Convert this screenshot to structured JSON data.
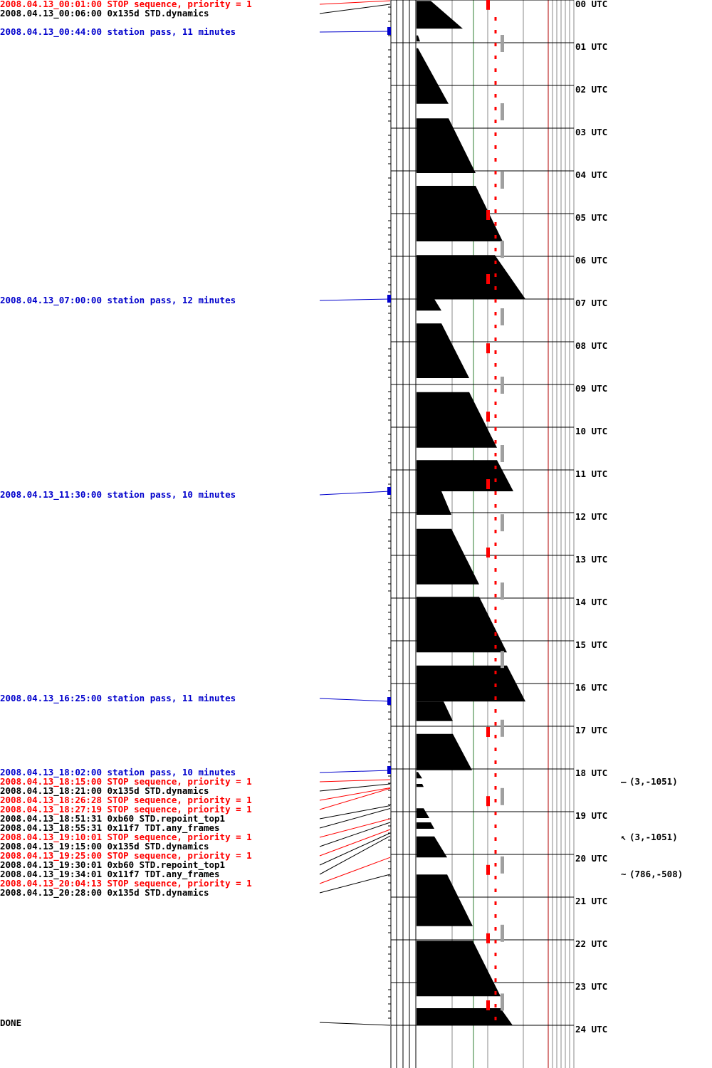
{
  "colors": {
    "stop": "#ff0000",
    "command": "#000000",
    "pass": "#0000cc",
    "bar": "#000000",
    "red_dash": "#ff0000",
    "gray_dash": "#a0a0a0",
    "green_grid": "#2e7d32"
  },
  "events": [
    {
      "text": "2008.04.13_00:01:00 STOP sequence, priority = 1",
      "kind": "stop",
      "t": 0.017
    },
    {
      "text": "2008.04.13_00:06:00 0x135d STD.dynamics",
      "kind": "command",
      "t": 0.1
    },
    {
      "text": "2008.04.13_00:44:00 station pass, 11 minutes",
      "kind": "pass",
      "t": 0.733,
      "duration": 11
    },
    {
      "text": "2008.04.13_07:00:00 station pass, 12 minutes",
      "kind": "pass",
      "t": 7.0,
      "duration": 12
    },
    {
      "text": "2008.04.13_11:30:00 station pass, 10 minutes",
      "kind": "pass",
      "t": 11.5,
      "duration": 10
    },
    {
      "text": "2008.04.13_16:25:00 station pass, 11 minutes",
      "kind": "pass",
      "t": 16.417,
      "duration": 11
    },
    {
      "text": "2008.04.13_18:02:00 station pass, 10 minutes",
      "kind": "pass",
      "t": 18.033,
      "duration": 10
    },
    {
      "text": "2008.04.13_18:15:00 STOP sequence, priority = 1",
      "kind": "stop",
      "t": 18.25
    },
    {
      "text": "2008.04.13_18:21:00 0x135d STD.dynamics",
      "kind": "command",
      "t": 18.35
    },
    {
      "text": "2008.04.13_18:26:28 STOP sequence, priority = 1",
      "kind": "stop",
      "t": 18.441
    },
    {
      "text": "2008.04.13_18:27:19 STOP sequence, priority = 1",
      "kind": "stop",
      "t": 18.455
    },
    {
      "text": "2008.04.13_18:51:31  0xb60 STD.repoint_top1",
      "kind": "command",
      "t": 18.859
    },
    {
      "text": "2008.04.13_18:55:31 0x11f7 TDT.any_frames",
      "kind": "command",
      "t": 18.925
    },
    {
      "text": "2008.04.13_19:10:01 STOP sequence, priority = 1",
      "kind": "stop",
      "t": 19.167
    },
    {
      "text": "2008.04.13_19:15:00 0x135d STD.dynamics",
      "kind": "command",
      "t": 19.25
    },
    {
      "text": "2008.04.13_19:25:00 STOP sequence, priority = 1",
      "kind": "stop",
      "t": 19.417
    },
    {
      "text": "2008.04.13_19:30:01  0xb60 STD.repoint_top1",
      "kind": "command",
      "t": 19.5
    },
    {
      "text": "2008.04.13_19:34:01 0x11f7 TDT.any_frames",
      "kind": "command",
      "t": 19.567
    },
    {
      "text": "2008.04.13_20:04:13 STOP sequence, priority = 1",
      "kind": "stop",
      "t": 20.07
    },
    {
      "text": "2008.04.13_20:28:00 0x135d STD.dynamics",
      "kind": "command",
      "t": 20.467
    }
  ],
  "done_label": "DONE",
  "hour_labels": [
    "00 UTC",
    "01 UTC",
    "02 UTC",
    "03 UTC",
    "04 UTC",
    "05 UTC",
    "06 UTC",
    "07 UTC",
    "08 UTC",
    "09 UTC",
    "10 UTC",
    "11 UTC",
    "12 UTC",
    "13 UTC",
    "14 UTC",
    "15 UTC",
    "16 UTC",
    "17 UTC",
    "18 UTC",
    "19 UTC",
    "20 UTC",
    "21 UTC",
    "22 UTC",
    "23 UTC",
    "24 UTC"
  ],
  "annotations": [
    {
      "text": "(3,-1051)",
      "glyph": "—",
      "t": 18.3
    },
    {
      "text": "(3,-1051)",
      "glyph": "↖",
      "t": 19.6
    },
    {
      "text": "(786,-508)",
      "glyph": "~",
      "t": 20.47
    }
  ],
  "chart_data": {
    "type": "timeline",
    "x_range_hours": [
      0,
      24
    ],
    "sawtooth_segments": [
      {
        "start": 0.02,
        "end": 0.67,
        "w0": 0.2,
        "w1": 0.65
      },
      {
        "start": 0.83,
        "end": 0.97,
        "w0": 0.02,
        "w1": 0.05
      },
      {
        "start": 1.13,
        "end": 2.43,
        "w0": 0.02,
        "w1": 0.45
      },
      {
        "start": 2.77,
        "end": 4.05,
        "w0": 0.45,
        "w1": 0.83
      },
      {
        "start": 4.35,
        "end": 5.65,
        "w0": 0.83,
        "w1": 1.21
      },
      {
        "start": 5.97,
        "end": 7.0,
        "w0": 1.1,
        "w1": 1.53
      },
      {
        "start": 7.0,
        "end": 7.27,
        "w0": 0.25,
        "w1": 0.35
      },
      {
        "start": 7.57,
        "end": 8.85,
        "w0": 0.35,
        "w1": 0.74
      },
      {
        "start": 9.18,
        "end": 10.48,
        "w0": 0.74,
        "w1": 1.13
      },
      {
        "start": 10.77,
        "end": 11.5,
        "w0": 1.13,
        "w1": 1.36
      },
      {
        "start": 11.5,
        "end": 12.05,
        "w0": 0.35,
        "w1": 0.49
      },
      {
        "start": 12.38,
        "end": 13.68,
        "w0": 0.49,
        "w1": 0.88
      },
      {
        "start": 13.97,
        "end": 15.27,
        "w0": 0.88,
        "w1": 1.27
      },
      {
        "start": 15.58,
        "end": 16.42,
        "w0": 1.27,
        "w1": 1.53
      },
      {
        "start": 16.42,
        "end": 16.88,
        "w0": 0.38,
        "w1": 0.51
      },
      {
        "start": 17.18,
        "end": 18.03,
        "w0": 0.51,
        "w1": 0.78
      },
      {
        "start": 18.07,
        "end": 18.22,
        "w0": 0.02,
        "w1": 0.08
      },
      {
        "start": 18.35,
        "end": 18.42,
        "w0": 0.08,
        "w1": 0.1
      },
      {
        "start": 18.92,
        "end": 19.15,
        "w0": 0.1,
        "w1": 0.18
      },
      {
        "start": 19.25,
        "end": 19.4,
        "w0": 0.2,
        "w1": 0.25
      },
      {
        "start": 19.58,
        "end": 20.07,
        "w0": 0.25,
        "w1": 0.43
      },
      {
        "start": 20.47,
        "end": 21.68,
        "w0": 0.43,
        "w1": 0.79
      },
      {
        "start": 22.02,
        "end": 23.32,
        "w0": 0.79,
        "w1": 1.18
      },
      {
        "start": 23.6,
        "end": 24.0,
        "w0": 1.18,
        "w1": 1.35
      }
    ],
    "red_marks": [
      0.08,
      5.0,
      6.5,
      8.12,
      9.72,
      11.3,
      12.9,
      17.1,
      18.72,
      20.33,
      21.93,
      23.5
    ],
    "gray_marks": [
      1.0,
      2.6,
      4.2,
      5.82,
      7.4,
      9.0,
      10.6,
      12.22,
      13.82,
      15.42,
      17.03,
      18.63,
      20.23,
      21.83,
      23.44
    ],
    "station_pass_marks": [
      0.733,
      7.0,
      11.5,
      16.417,
      18.033
    ]
  }
}
